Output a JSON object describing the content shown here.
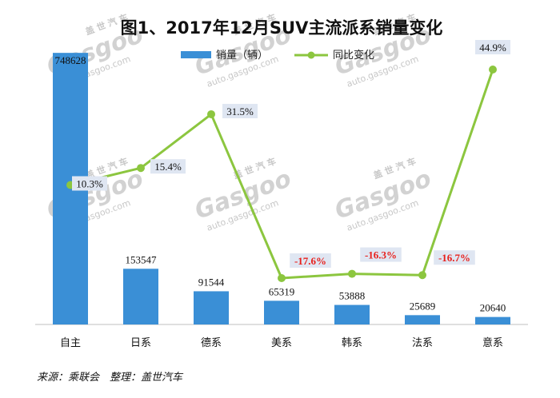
{
  "chart_data": {
    "type": "bar+line",
    "title": "图1、2017年12月SUV主流派系销量变化",
    "categories": [
      "自主",
      "日系",
      "德系",
      "美系",
      "韩系",
      "法系",
      "意系"
    ],
    "series": [
      {
        "name": "销量（辆）",
        "type": "bar",
        "axis": "left",
        "color": "#3a8fd6",
        "values": [
          748628,
          153547,
          91544,
          65319,
          53888,
          25689,
          20640
        ],
        "labels": [
          "748628",
          "153547",
          "91544",
          "65319",
          "53888",
          "25689",
          "20640"
        ]
      },
      {
        "name": "同比变化",
        "type": "line",
        "axis": "right",
        "color": "#8cc63f",
        "values": [
          10.3,
          15.4,
          31.5,
          -17.6,
          -16.3,
          -16.7,
          44.9
        ],
        "labels": [
          "10.3%",
          "15.4%",
          "31.5%",
          "-17.6%",
          "-16.3%",
          "-16.7%",
          "44.9%"
        ],
        "negative_label_color": "#e8201c",
        "positive_label_color": "#111111"
      }
    ],
    "ylim_left": [
      0,
      760000
    ],
    "ylim_right": [
      -25,
      50
    ],
    "xlabel": "",
    "ylabel": "",
    "grid": false,
    "legend": "top-center"
  },
  "source_text": "来源：乘联会　整理：盖世汽车",
  "watermark": {
    "cn": "盖 世 汽 车",
    "logo": "Gasgoo",
    "url": "auto.gasgoo.com"
  }
}
